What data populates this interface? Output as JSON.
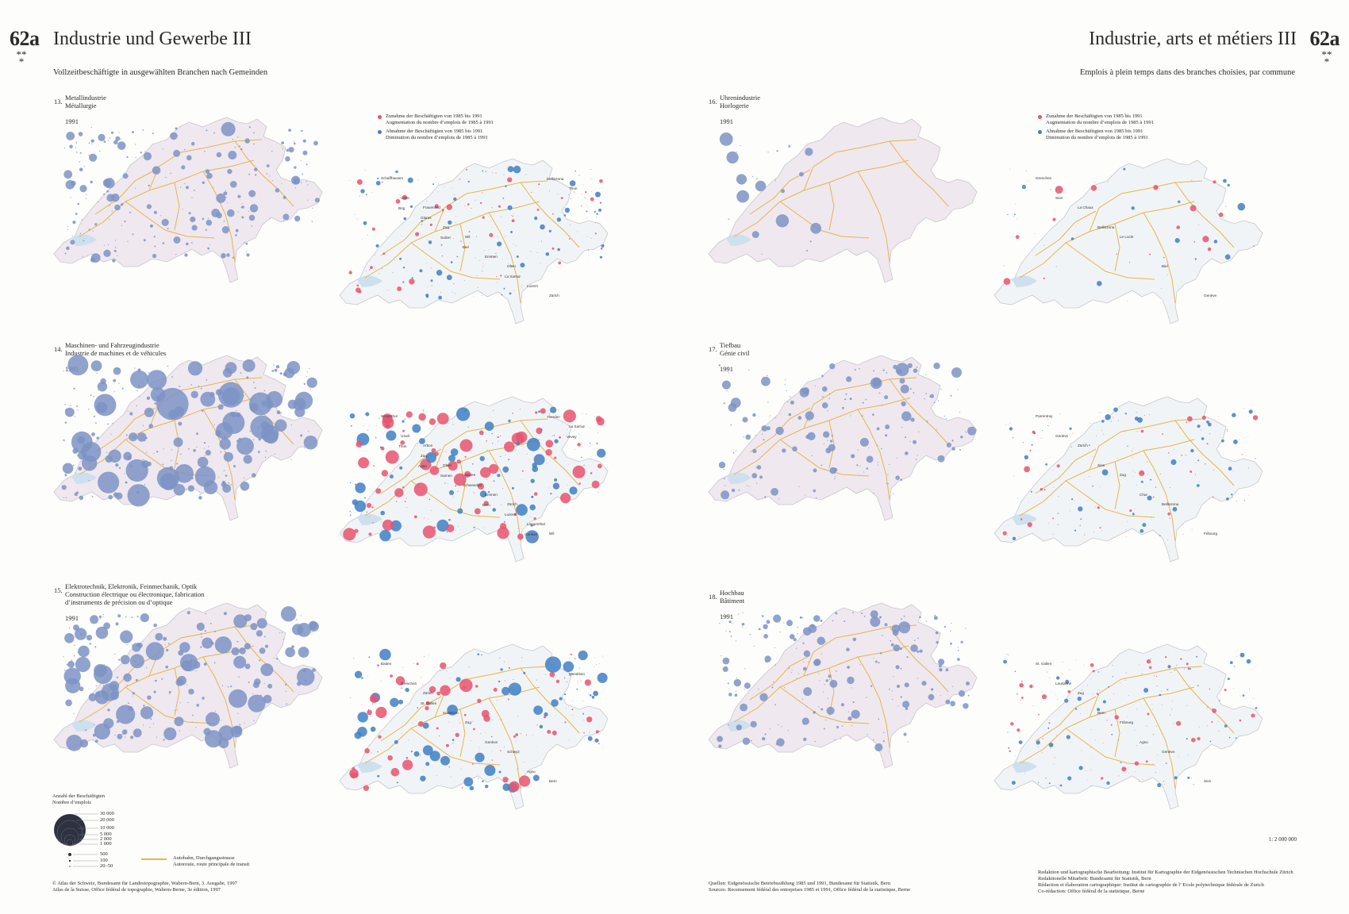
{
  "header": {
    "left_number": "62a",
    "left_title": "Industrie und Gewerbe III",
    "left_subtitle": "Vollzeitbeschäftigte in ausgewählten Branchen nach Gemeinden",
    "right_number": "62a",
    "right_title": "Industrie, arts et métiers III",
    "right_subtitle": "Emplois à plein temps dans des branches choisies, par commune",
    "stars": "**\n*"
  },
  "colors": {
    "increase": "#e8546e",
    "decrease": "#3f7fc6",
    "employment_dot": "#7d93c4",
    "road": "#e6b54a",
    "land_left": "#efe8ef",
    "land_right": "#f1f4f6",
    "lake": "#cde0ee"
  },
  "panels": [
    {
      "number": "13.",
      "label": "Metallindustrie\nMétallurgie",
      "year": "1991",
      "change_labels": [
        "Schaffhausen",
        "Frauenfeld",
        "Wil",
        "Olten",
        "Zürich",
        "Uster",
        "Zug",
        "Emmen",
        "Luzern",
        "Thun",
        "Glarus",
        "Biel",
        "La Sarraz",
        "Bellinzona",
        "Brig",
        "Sulzer"
      ]
    },
    {
      "number": "14.",
      "label": "Maschinen- und Fahrzeugindustrie\nIndustrie de machines et de véhicules",
      "year": "1991",
      "change_labels": [
        "Winterthur",
        "Arbon",
        "Baden",
        "Zürich",
        "Wil",
        "Uzwil",
        "Olten",
        "Emmen",
        "Langenthal",
        "La Sarraz",
        "Zug",
        "Schwanden",
        "Luzern",
        "Yverdon",
        "Thun",
        "Sarnen",
        "Bern",
        "Genève",
        "Vevey",
        "Agno"
      ]
    },
    {
      "number": "15.",
      "label": "Elektrotechnik, Elektronik, Feinmechanik, Optik\nConstruction électrique ou électronique, fabrication\nd’instruments de précision ou d’optique",
      "year": "1991",
      "change_labels": [
        "Baden",
        "Zürich",
        "Zug",
        "Schwyz",
        "Bern",
        "Grenchen",
        "Solothurn",
        "Genève",
        "Agno",
        "Mendrisio",
        "St. Gallen"
      ]
    },
    {
      "number": "16.",
      "label": "Uhrenindustrie\nHorlogerie",
      "year": "1991",
      "change_labels": [
        "Grenchen",
        "La Chaux",
        "Le Locle",
        "Biel",
        "Genève",
        "Sion",
        "Bellinzona"
      ]
    },
    {
      "number": "17.",
      "label": "Tiefbau\nGénie civil",
      "year": "1991",
      "change_labels": [
        "Porrentruy",
        "Zürich",
        "Zug",
        "Bellinzona",
        "Fribourg",
        "Genève",
        "Sion",
        "Chur"
      ]
    },
    {
      "number": "18.",
      "label": "Hochbau\nBâtiment",
      "year": "1991",
      "change_labels": [
        "St. Gallen",
        "Zug",
        "Fribourg",
        "Genève",
        "Sion",
        "Lausanne",
        "Bern",
        "Agno"
      ]
    }
  ],
  "legend_change": {
    "increase_de": "Zunahme der Beschäftigten von 1985 bis 1991",
    "increase_fr": "Augmentation du nombre d’emplois de 1985 à 1991",
    "decrease_de": "Abnahme der Beschäftigten von 1985 bis 1991",
    "decrease_fr": "Diminution du nombre d’emplois de 1985 à 1991"
  },
  "legend_size": {
    "title_de": "Anzahl der Beschäftigten",
    "title_fr": "Nombre d’emplois",
    "values": [
      "30 000",
      "20 000",
      "10 000",
      "5 000",
      "2 000",
      "1 000",
      "500",
      "100",
      "20–50"
    ]
  },
  "legend_road": {
    "de": "Autobahn, Durchgangsstrasse",
    "fr": "Autoroute, route principale de transit"
  },
  "scale": "1: 2 000 000",
  "footer": {
    "copyright": "© Atlas der Schweiz, Bundesamt für Landestopographie, Wabern-Bern, 3. Ausgabe, 1997\nAtlas de la Suisse, Office fédéral de topographie, Wabern-Berne, 3e édition, 1997",
    "sources": "Quellen: Eidgenössische Betriebszählung 1985 und 1991, Bundesamt für Statistik, Bern\nSources: Recensement fédéral des entreprises 1985 et 1991, Office fédéral de la statistique, Berne",
    "credits": "Redaktion und kartographische Bearbeitung: Institut für Kartographie der Eidgenössischen Technischen Hochschule Zürich\nRedaktionelle Mitarbeit: Bundesamt für Statistik, Bern\nRédaction et élaboration cartographique: Institut de cartographie de l’ Ecole polytechnique fédérale de Zurich\nCo-rédaction: Office fédéral de la statistique, Berne"
  }
}
